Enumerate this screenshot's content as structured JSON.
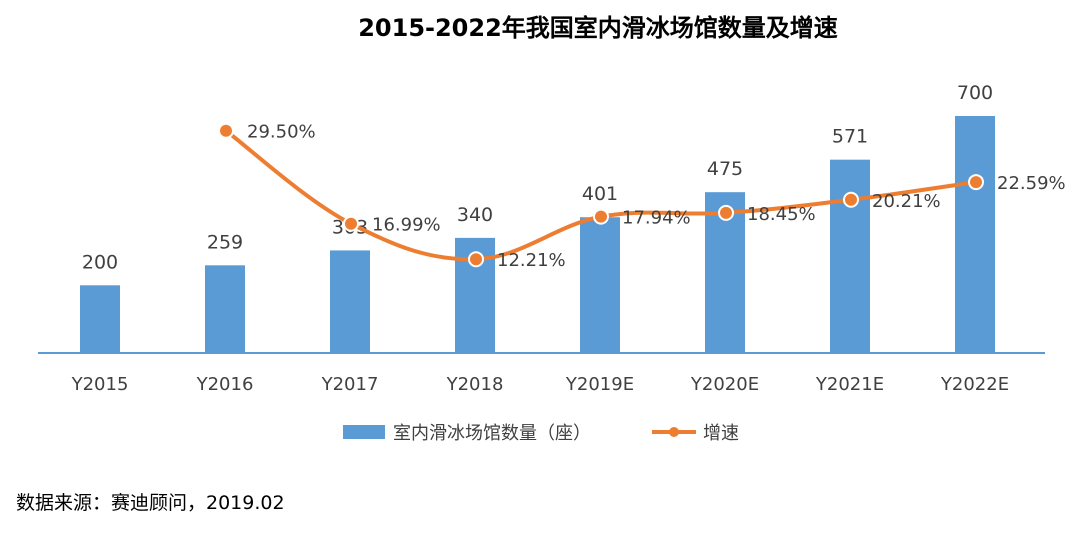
{
  "chart_data": {
    "type": "bar",
    "title": "2015-2022年我国室内滑冰场馆数量及增速",
    "categories": [
      "Y2015",
      "Y2016",
      "Y2017",
      "Y2018",
      "Y2019E",
      "Y2020E",
      "Y2021E",
      "Y2022E"
    ],
    "series": [
      {
        "name": "室内滑冰场馆数量（座）",
        "type": "bar",
        "values": [
          200,
          259,
          303,
          340,
          401,
          475,
          571,
          700
        ],
        "labels": [
          "200",
          "259",
          "303",
          "340",
          "401",
          "475",
          "571",
          "700"
        ],
        "color": "#5b9bd5"
      },
      {
        "name": "增速",
        "type": "line",
        "values": [
          null,
          29.5,
          16.99,
          12.21,
          17.94,
          18.45,
          20.21,
          22.59
        ],
        "labels": [
          "",
          "29.50%",
          "16.99%",
          "12.21%",
          "17.94%",
          "18.45%",
          "20.21%",
          "22.59%"
        ],
        "color": "#ed7d31"
      }
    ],
    "ylim": [
      0,
      700
    ],
    "y2lim": [
      0,
      40
    ],
    "grid": false,
    "legend_position": "bottom"
  },
  "source": "数据来源：赛迪顾问，2019.02"
}
